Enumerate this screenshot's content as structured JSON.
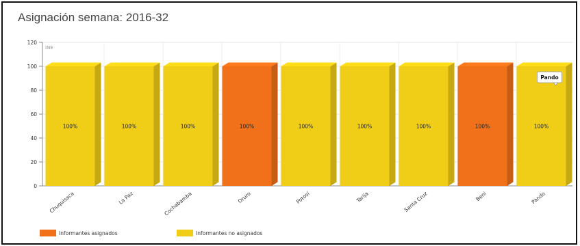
{
  "chart_data": {
    "type": "bar",
    "title": "Asignación semana: 2016-32",
    "watermark": "INE",
    "categories": [
      "Chuquisaca",
      "La Paz",
      "Cochabamba",
      "Oruro",
      "Potosí",
      "Tarija",
      "Santa Cruz",
      "Beni",
      "Pando"
    ],
    "values": [
      100,
      100,
      100,
      100,
      100,
      100,
      100,
      100,
      100
    ],
    "data_labels": [
      "100%",
      "100%",
      "100%",
      "100%",
      "100%",
      "100%",
      "100%",
      "100%",
      "100%"
    ],
    "series_by_bar": [
      "Informantes no asignados",
      "Informantes no asignados",
      "Informantes no asignados",
      "Informantes asignados",
      "Informantes no asignados",
      "Informantes no asignados",
      "Informantes no asignados",
      "Informantes asignados",
      "Informantes no asignados"
    ],
    "series": [
      {
        "name": "Informantes asignados",
        "color": "#f07119"
      },
      {
        "name": "Informantes no asignados",
        "color": "#f0cd16"
      }
    ],
    "ylim": [
      0,
      120
    ],
    "yticks": [
      0,
      20,
      40,
      60,
      80,
      100,
      120
    ],
    "grid": true,
    "legend_position": "bottom-left",
    "tooltip": "Pando",
    "xlabel": "",
    "ylabel": ""
  }
}
